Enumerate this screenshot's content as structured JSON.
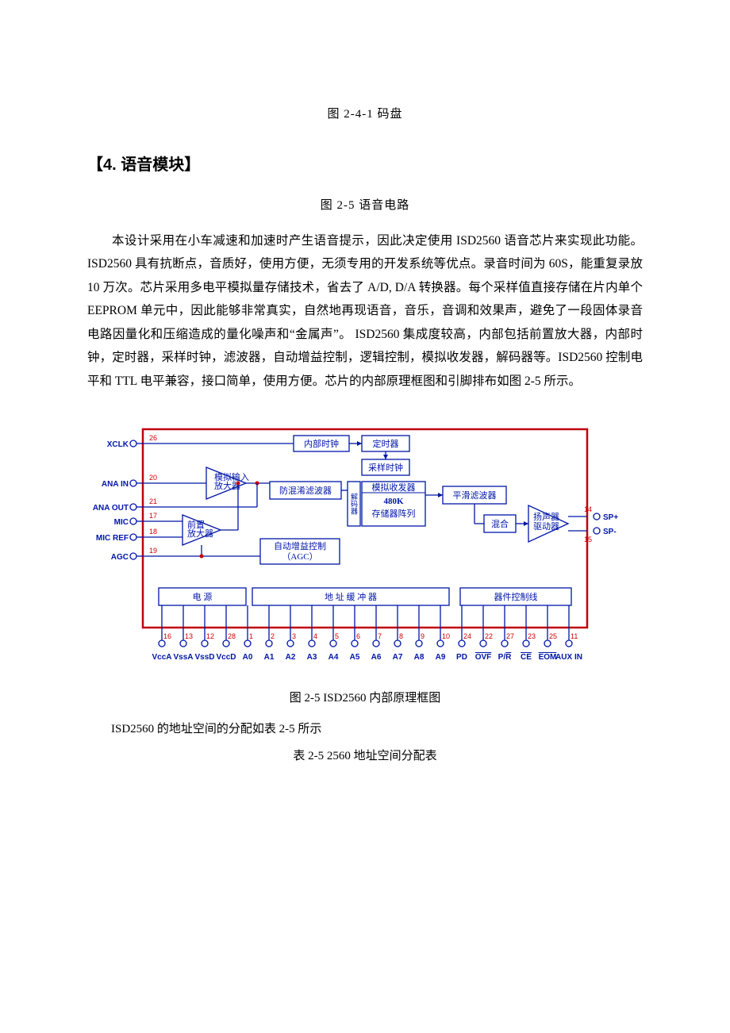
{
  "colors": {
    "text": "#000000",
    "diagram_outline": "#c00010",
    "diagram_block": "#0016a8",
    "diagram_wire": "#0016a8",
    "pin_number": "#d00000",
    "pin_ring": "#0016a8",
    "background": "#ffffff"
  },
  "captions": {
    "fig_2_4_1": "图 2-4-1   码盘",
    "section_title": "【4. 语音模块】",
    "fig_2_5_top": "图 2-5   语音电路",
    "fig_2_5_bottom": "图 2-5   ISD2560 内部原理框图",
    "addr_line": "ISD2560 的地址空间的分配如表 2-5 所示",
    "table_2_5": "表 2-5   2560 地址空间分配表"
  },
  "body_paragraph": "本设计采用在小车减速和加速时产生语音提示，因此决定使用 ISD2560 语音芯片来实现此功能。ISD2560 具有抗断点，音质好，使用方便，无须专用的开发系统等优点。录音时间为 60S，能重复录放 10 万次。芯片采用多电平模拟量存储技术，省去了 A/D, D/A 转换器。每个采样值直接存储在片内单个 EEPROM 单元中，因此能够非常真实，自然地再现语音，音乐，音调和效果声，避免了一段固体录音电路因量化和压缩造成的量化噪声和“金属声”。 ISD2560 集成度较高，内部包括前置放大器，内部时钟，定时器，采样时钟，滤波器，自动增益控制，逻辑控制，模拟收发器，解码器等。ISD2560 控制电平和 TTL 电平兼容，接口简单，使用方便。芯片的内部原理框图和引脚排布如图 2-5 所示。",
  "diagram": {
    "type": "block-diagram",
    "outline_color": "#c00010",
    "block_border_color": "#0016a8",
    "block_text_color": "#0016a8",
    "wire_color": "#0016a8",
    "pin_number_color": "#d00000",
    "left_pins": [
      {
        "num": "26",
        "label": "XCLK"
      },
      {
        "num": "20",
        "label": "ANA IN"
      },
      {
        "num": "21",
        "label": "ANA OUT"
      },
      {
        "num": "17",
        "label": "MIC"
      },
      {
        "num": "18",
        "label": "MIC REF"
      },
      {
        "num": "19",
        "label": "AGC"
      }
    ],
    "right_pins": [
      {
        "num": "14",
        "label": "SP+"
      },
      {
        "num": "15",
        "label": "SP-"
      }
    ],
    "bottom_pins": [
      {
        "num": "16",
        "label": "VccA"
      },
      {
        "num": "13",
        "label": "VssA"
      },
      {
        "num": "12",
        "label": "VssD"
      },
      {
        "num": "28",
        "label": "VccD"
      },
      {
        "num": "1",
        "label": "A0"
      },
      {
        "num": "2",
        "label": "A1"
      },
      {
        "num": "3",
        "label": "A2"
      },
      {
        "num": "4",
        "label": "A3"
      },
      {
        "num": "5",
        "label": "A4"
      },
      {
        "num": "6",
        "label": "A5"
      },
      {
        "num": "7",
        "label": "A6"
      },
      {
        "num": "8",
        "label": "A7"
      },
      {
        "num": "9",
        "label": "A8"
      },
      {
        "num": "10",
        "label": "A9"
      },
      {
        "num": "24",
        "label": "PD"
      },
      {
        "num": "22",
        "label": "OVF",
        "overline": true
      },
      {
        "num": "27",
        "label": "P/R",
        "overline_part": "R"
      },
      {
        "num": "23",
        "label": "CE",
        "overline": true
      },
      {
        "num": "25",
        "label": "EOM",
        "overline": true
      },
      {
        "num": "11",
        "label": "AUX IN"
      }
    ],
    "blocks": {
      "internal_clock": "内部时钟",
      "timer": "定时器",
      "sample_clock": "采样时钟",
      "analog_in_amp_l1": "模拟输入",
      "analog_in_amp_l2": "放大器",
      "anti_alias": "防混淆滤波器",
      "addr_decoder": "解码器",
      "xcvr": "模拟收发器",
      "mem_size": "480K",
      "mem_array": "存储器阵列",
      "smooth_filter": "平滑滤波器",
      "preamp_l1": "前置",
      "preamp_l2": "放大器",
      "agc_l1": "自动增益控制",
      "agc_l2": "（AGC）",
      "mux": "混合",
      "spk_l1": "扬声器",
      "spk_l2": "驱动器",
      "power": "电     源",
      "addr_buf": "地     址  缓   冲   器",
      "ctrl_lines": "器件控制线"
    }
  }
}
